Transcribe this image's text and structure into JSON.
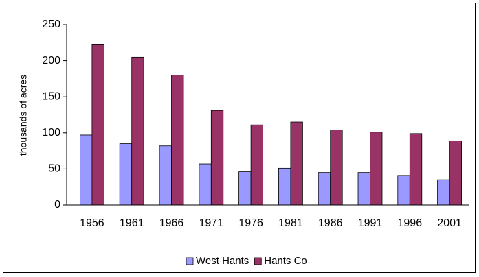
{
  "chart_data": {
    "type": "bar",
    "ylabel": "thousands of acres",
    "categories": [
      "1956",
      "1961",
      "1966",
      "1971",
      "1976",
      "1981",
      "1986",
      "1991",
      "1996",
      "2001"
    ],
    "series": [
      {
        "name": "West Hants",
        "color": "#9999ff",
        "values": [
          97,
          85,
          82,
          57,
          46,
          51,
          45,
          45,
          41,
          35
        ]
      },
      {
        "name": "Hants Co",
        "color": "#993366",
        "values": [
          223,
          205,
          180,
          131,
          111,
          115,
          104,
          101,
          99,
          89
        ]
      }
    ],
    "ylim": [
      0,
      250
    ],
    "yticks": [
      0,
      50,
      100,
      150,
      200,
      250
    ],
    "grid": false,
    "legend": "bottom"
  }
}
